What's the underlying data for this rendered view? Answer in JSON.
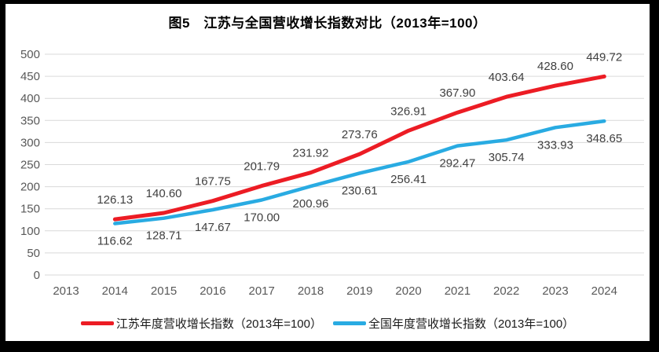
{
  "page": {
    "outer_background": "#000000",
    "canvas_background": "#FFFFFF"
  },
  "chart_data": {
    "type": "line",
    "title": "图5　江苏与全国营收增长指数对比（2013年=100）",
    "categories": [
      "2013",
      "2014",
      "2015",
      "2016",
      "2017",
      "2018",
      "2019",
      "2020",
      "2021",
      "2022",
      "2023",
      "2024"
    ],
    "series": [
      {
        "id": "jiangsu-series",
        "name": "江苏年度营收增长指数（2013年=100）",
        "color": "#EC1C24",
        "line_width": 5,
        "label_position": "above",
        "values": [
          null,
          126.13,
          140.6,
          167.75,
          201.79,
          231.92,
          273.76,
          326.91,
          367.9,
          403.64,
          428.6,
          449.72
        ]
      },
      {
        "id": "national-series",
        "name": "全国年度营收增长指数（2013年=100）",
        "color": "#29ABE2",
        "line_width": 4.5,
        "label_position": "below",
        "values": [
          null,
          116.62,
          128.71,
          147.67,
          170.0,
          200.96,
          230.61,
          256.41,
          292.47,
          305.74,
          333.93,
          348.65
        ]
      }
    ],
    "ylim": [
      0,
      500
    ],
    "yticks": [
      0,
      50,
      100,
      150,
      200,
      250,
      300,
      350,
      400,
      450,
      500
    ],
    "grid": true,
    "gridline_color": "#D9D9D9",
    "axis_text_color": "#595959",
    "data_label_color": "#3F3F3F",
    "value_format": "0.00",
    "legend_position": "bottom"
  }
}
